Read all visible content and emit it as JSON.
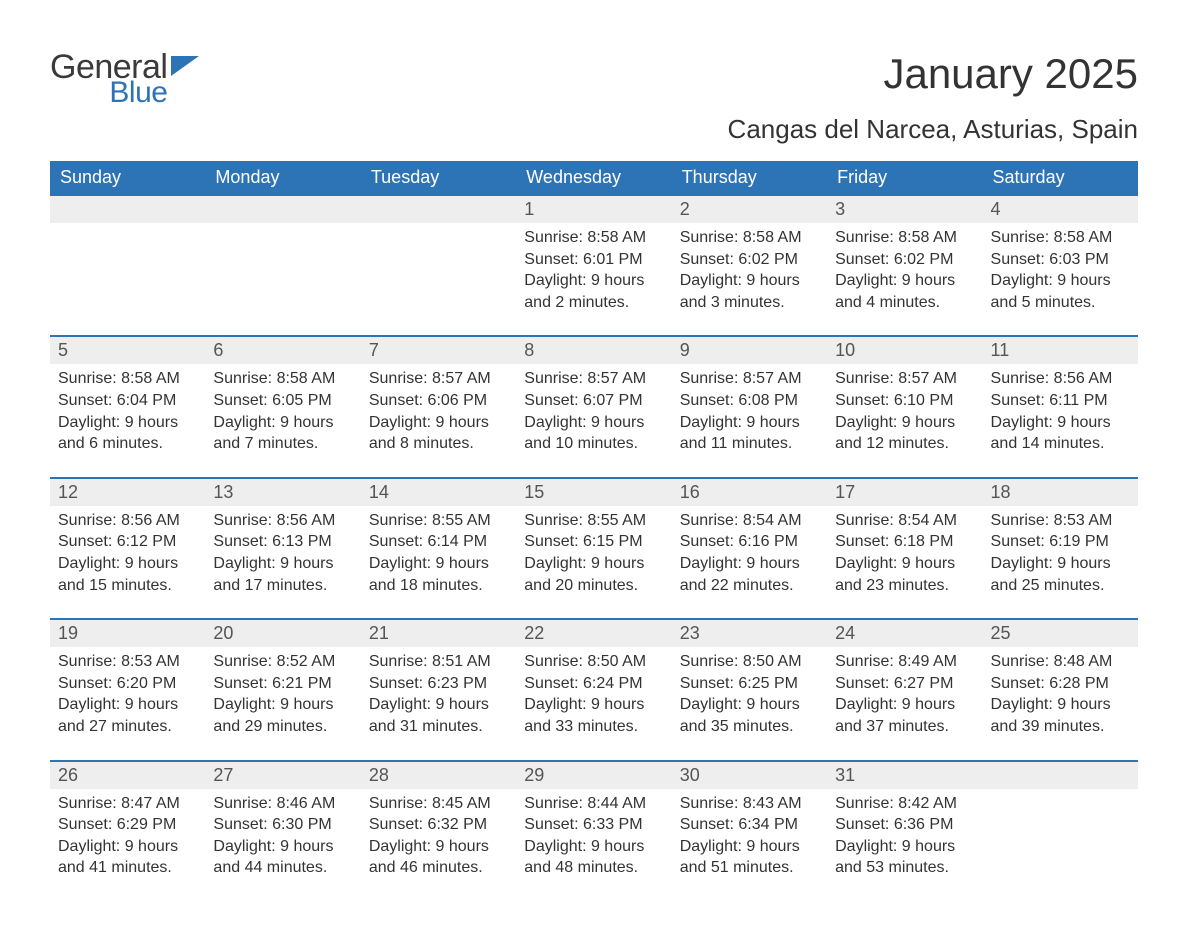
{
  "logo": {
    "general": "General",
    "blue": "Blue",
    "tri_color": "#2d74b6",
    "text_color_dark": "#3a3a3a"
  },
  "title": {
    "month": "January 2025",
    "location": "Cangas del Narcea, Asturias, Spain"
  },
  "colors": {
    "header_bg": "#2d74b6",
    "header_text": "#ffffff",
    "daynum_bg": "#eeeeee",
    "daynum_text": "#555555",
    "body_text": "#333333",
    "row_border": "#2d74b6",
    "background": "#ffffff"
  },
  "typography": {
    "title_fontsize": 42,
    "location_fontsize": 26,
    "dow_fontsize": 18,
    "daynum_fontsize": 18,
    "content_fontsize": 16,
    "font_family": "Arial"
  },
  "calendar": {
    "type": "table",
    "columns": [
      "Sunday",
      "Monday",
      "Tuesday",
      "Wednesday",
      "Thursday",
      "Friday",
      "Saturday"
    ],
    "weeks": [
      [
        null,
        null,
        null,
        {
          "n": "1",
          "sunrise": "Sunrise: 8:58 AM",
          "sunset": "Sunset: 6:01 PM",
          "daylight": "Daylight: 9 hours and 2 minutes."
        },
        {
          "n": "2",
          "sunrise": "Sunrise: 8:58 AM",
          "sunset": "Sunset: 6:02 PM",
          "daylight": "Daylight: 9 hours and 3 minutes."
        },
        {
          "n": "3",
          "sunrise": "Sunrise: 8:58 AM",
          "sunset": "Sunset: 6:02 PM",
          "daylight": "Daylight: 9 hours and 4 minutes."
        },
        {
          "n": "4",
          "sunrise": "Sunrise: 8:58 AM",
          "sunset": "Sunset: 6:03 PM",
          "daylight": "Daylight: 9 hours and 5 minutes."
        }
      ],
      [
        {
          "n": "5",
          "sunrise": "Sunrise: 8:58 AM",
          "sunset": "Sunset: 6:04 PM",
          "daylight": "Daylight: 9 hours and 6 minutes."
        },
        {
          "n": "6",
          "sunrise": "Sunrise: 8:58 AM",
          "sunset": "Sunset: 6:05 PM",
          "daylight": "Daylight: 9 hours and 7 minutes."
        },
        {
          "n": "7",
          "sunrise": "Sunrise: 8:57 AM",
          "sunset": "Sunset: 6:06 PM",
          "daylight": "Daylight: 9 hours and 8 minutes."
        },
        {
          "n": "8",
          "sunrise": "Sunrise: 8:57 AM",
          "sunset": "Sunset: 6:07 PM",
          "daylight": "Daylight: 9 hours and 10 minutes."
        },
        {
          "n": "9",
          "sunrise": "Sunrise: 8:57 AM",
          "sunset": "Sunset: 6:08 PM",
          "daylight": "Daylight: 9 hours and 11 minutes."
        },
        {
          "n": "10",
          "sunrise": "Sunrise: 8:57 AM",
          "sunset": "Sunset: 6:10 PM",
          "daylight": "Daylight: 9 hours and 12 minutes."
        },
        {
          "n": "11",
          "sunrise": "Sunrise: 8:56 AM",
          "sunset": "Sunset: 6:11 PM",
          "daylight": "Daylight: 9 hours and 14 minutes."
        }
      ],
      [
        {
          "n": "12",
          "sunrise": "Sunrise: 8:56 AM",
          "sunset": "Sunset: 6:12 PM",
          "daylight": "Daylight: 9 hours and 15 minutes."
        },
        {
          "n": "13",
          "sunrise": "Sunrise: 8:56 AM",
          "sunset": "Sunset: 6:13 PM",
          "daylight": "Daylight: 9 hours and 17 minutes."
        },
        {
          "n": "14",
          "sunrise": "Sunrise: 8:55 AM",
          "sunset": "Sunset: 6:14 PM",
          "daylight": "Daylight: 9 hours and 18 minutes."
        },
        {
          "n": "15",
          "sunrise": "Sunrise: 8:55 AM",
          "sunset": "Sunset: 6:15 PM",
          "daylight": "Daylight: 9 hours and 20 minutes."
        },
        {
          "n": "16",
          "sunrise": "Sunrise: 8:54 AM",
          "sunset": "Sunset: 6:16 PM",
          "daylight": "Daylight: 9 hours and 22 minutes."
        },
        {
          "n": "17",
          "sunrise": "Sunrise: 8:54 AM",
          "sunset": "Sunset: 6:18 PM",
          "daylight": "Daylight: 9 hours and 23 minutes."
        },
        {
          "n": "18",
          "sunrise": "Sunrise: 8:53 AM",
          "sunset": "Sunset: 6:19 PM",
          "daylight": "Daylight: 9 hours and 25 minutes."
        }
      ],
      [
        {
          "n": "19",
          "sunrise": "Sunrise: 8:53 AM",
          "sunset": "Sunset: 6:20 PM",
          "daylight": "Daylight: 9 hours and 27 minutes."
        },
        {
          "n": "20",
          "sunrise": "Sunrise: 8:52 AM",
          "sunset": "Sunset: 6:21 PM",
          "daylight": "Daylight: 9 hours and 29 minutes."
        },
        {
          "n": "21",
          "sunrise": "Sunrise: 8:51 AM",
          "sunset": "Sunset: 6:23 PM",
          "daylight": "Daylight: 9 hours and 31 minutes."
        },
        {
          "n": "22",
          "sunrise": "Sunrise: 8:50 AM",
          "sunset": "Sunset: 6:24 PM",
          "daylight": "Daylight: 9 hours and 33 minutes."
        },
        {
          "n": "23",
          "sunrise": "Sunrise: 8:50 AM",
          "sunset": "Sunset: 6:25 PM",
          "daylight": "Daylight: 9 hours and 35 minutes."
        },
        {
          "n": "24",
          "sunrise": "Sunrise: 8:49 AM",
          "sunset": "Sunset: 6:27 PM",
          "daylight": "Daylight: 9 hours and 37 minutes."
        },
        {
          "n": "25",
          "sunrise": "Sunrise: 8:48 AM",
          "sunset": "Sunset: 6:28 PM",
          "daylight": "Daylight: 9 hours and 39 minutes."
        }
      ],
      [
        {
          "n": "26",
          "sunrise": "Sunrise: 8:47 AM",
          "sunset": "Sunset: 6:29 PM",
          "daylight": "Daylight: 9 hours and 41 minutes."
        },
        {
          "n": "27",
          "sunrise": "Sunrise: 8:46 AM",
          "sunset": "Sunset: 6:30 PM",
          "daylight": "Daylight: 9 hours and 44 minutes."
        },
        {
          "n": "28",
          "sunrise": "Sunrise: 8:45 AM",
          "sunset": "Sunset: 6:32 PM",
          "daylight": "Daylight: 9 hours and 46 minutes."
        },
        {
          "n": "29",
          "sunrise": "Sunrise: 8:44 AM",
          "sunset": "Sunset: 6:33 PM",
          "daylight": "Daylight: 9 hours and 48 minutes."
        },
        {
          "n": "30",
          "sunrise": "Sunrise: 8:43 AM",
          "sunset": "Sunset: 6:34 PM",
          "daylight": "Daylight: 9 hours and 51 minutes."
        },
        {
          "n": "31",
          "sunrise": "Sunrise: 8:42 AM",
          "sunset": "Sunset: 6:36 PM",
          "daylight": "Daylight: 9 hours and 53 minutes."
        },
        null
      ]
    ]
  }
}
